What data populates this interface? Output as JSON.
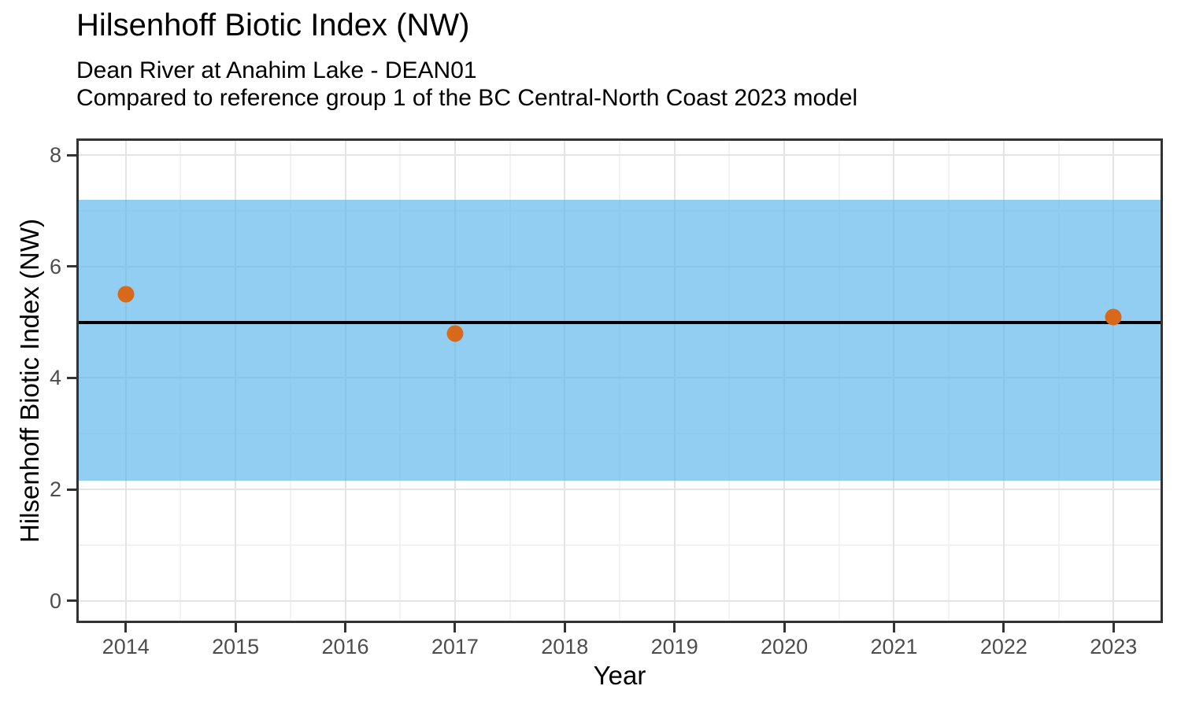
{
  "chart_data": {
    "type": "scatter",
    "title": "Hilsenhoff Biotic Index (NW)",
    "subtitle1": "Dean River at Anahim Lake - DEAN01",
    "subtitle2": "Compared to reference group 1 of the BC Central-North Coast 2023 model",
    "xlabel": "Year",
    "ylabel": "Hilsenhoff Biotic Index (NW)",
    "xlim": [
      2013.55,
      2023.45
    ],
    "ylim": [
      -0.4,
      8.3
    ],
    "x_ticks": [
      2014,
      2015,
      2016,
      2017,
      2018,
      2019,
      2020,
      2021,
      2022,
      2023
    ],
    "y_ticks": [
      0,
      2,
      4,
      6,
      8
    ],
    "x_minor_ticks": [
      2014.5,
      2015.5,
      2016.5,
      2017.5,
      2018.5,
      2019.5,
      2020.5,
      2021.5,
      2022.5
    ],
    "y_minor_ticks": [
      1,
      3,
      5,
      7
    ],
    "points": [
      {
        "x": 2014,
        "y": 5.5
      },
      {
        "x": 2017,
        "y": 4.8
      },
      {
        "x": 2023,
        "y": 5.1
      }
    ],
    "reference_band": {
      "lower": 2.15,
      "upper": 7.2,
      "fill": "rgba(86,180,233,0.65)"
    },
    "reference_line": {
      "value": 5.0,
      "color": "#000000",
      "width": 4
    },
    "point_style": {
      "color": "#D8691A",
      "diameter": 21
    },
    "grid": {
      "on": true,
      "major_color": "#e4e4e4",
      "minor_color": "#f2f2f2"
    },
    "axis_style": {
      "tick_color": "#333333",
      "tick_label_color": "#4d4d4d",
      "border_color": "#333333"
    },
    "legend": "none"
  }
}
